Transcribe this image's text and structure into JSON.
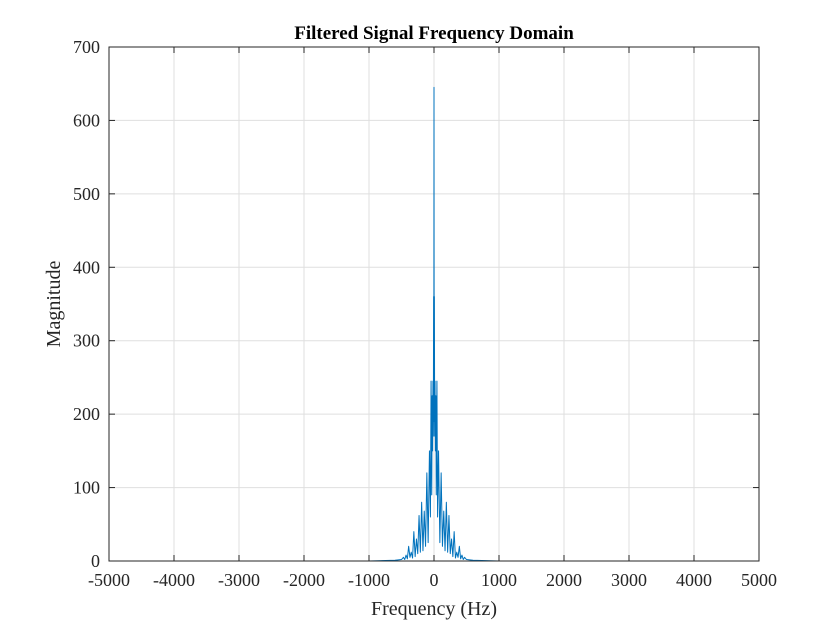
{
  "chart_data": {
    "type": "line",
    "title": "Filtered Signal Frequency Domain",
    "xlabel": "Frequency (Hz)",
    "ylabel": "Magnitude",
    "xlim": [
      -5000,
      5000
    ],
    "ylim": [
      0,
      700
    ],
    "x_ticks": [
      -5000,
      -4000,
      -3000,
      -2000,
      -1000,
      0,
      1000,
      2000,
      3000,
      4000,
      5000
    ],
    "x_tick_labels": [
      "-5000",
      "-4000",
      "-3000",
      "-2000",
      "-1000",
      "0",
      "1000",
      "2000",
      "3000",
      "4000",
      "5000"
    ],
    "y_ticks": [
      0,
      100,
      200,
      300,
      400,
      500,
      600,
      700
    ],
    "y_tick_labels": [
      "0",
      "100",
      "200",
      "300",
      "400",
      "500",
      "600",
      "700"
    ],
    "grid": true,
    "legend": "none",
    "series": [
      {
        "color": "#0072BD",
        "x": [
          -4000,
          -1000,
          -600,
          -500,
          -470,
          -450,
          -430,
          -410,
          -390,
          -370,
          -350,
          -330,
          -310,
          -290,
          -270,
          -250,
          -230,
          -210,
          -190,
          -170,
          -150,
          -130,
          -110,
          -90,
          -70,
          -55,
          -45,
          -35,
          -28,
          -22,
          -16,
          -10,
          -6,
          -3,
          0,
          3,
          6,
          10,
          16,
          22,
          28,
          35,
          45,
          55,
          70,
          90,
          110,
          130,
          150,
          170,
          190,
          210,
          230,
          250,
          270,
          290,
          310,
          330,
          350,
          370,
          390,
          410,
          430,
          450,
          470,
          500,
          600,
          1000,
          4000,
          4100
        ],
        "y": [
          0,
          0,
          1,
          2,
          5,
          2,
          8,
          3,
          20,
          5,
          12,
          4,
          40,
          6,
          30,
          10,
          62,
          12,
          80,
          14,
          68,
          20,
          120,
          25,
          150,
          60,
          245,
          90,
          225,
          150,
          245,
          190,
          360,
          170,
          645,
          170,
          360,
          190,
          245,
          150,
          225,
          90,
          245,
          60,
          150,
          25,
          120,
          20,
          68,
          14,
          80,
          12,
          62,
          10,
          30,
          6,
          40,
          4,
          12,
          5,
          20,
          3,
          8,
          2,
          5,
          2,
          1,
          0,
          0,
          0
        ]
      }
    ]
  }
}
